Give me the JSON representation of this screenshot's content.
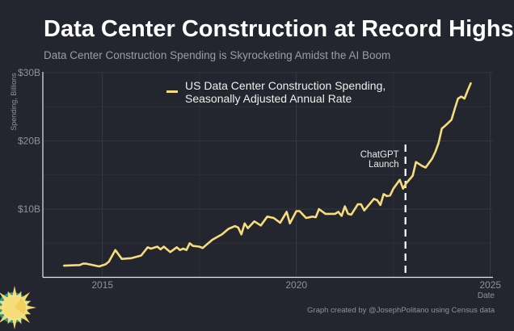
{
  "title": "Data Center Construction at Record Highs",
  "subtitle": "Data Center Construction Spending is Skyrocketing Amidst the AI Boom",
  "credit": "Graph created by @JosephPolitano using Census data",
  "colors": {
    "background": "#23262e",
    "line": "#f7dc7a",
    "grid": "#3a3d45",
    "axis": "#e6e6e6",
    "annotation": "#ffffff"
  },
  "logo": "sun-logo",
  "chart_data": {
    "type": "line",
    "title": "Data Center Construction at Record Highs",
    "subtitle": "Data Center Construction Spending is Skyrocketing Amidst the AI Boom",
    "xlabel": "Date",
    "ylabel": "Spending, Billions",
    "xlim": [
      "2013-07",
      "2025-01"
    ],
    "ylim": [
      0,
      30
    ],
    "grid": true,
    "legend_placement": "top-center",
    "x_ticks": [
      "2015",
      "2020",
      "2025"
    ],
    "y_ticks": [
      {
        "value": 10,
        "label": "$10B"
      },
      {
        "value": 20,
        "label": "$20B"
      },
      {
        "value": 30,
        "label": "$30B"
      }
    ],
    "series": [
      {
        "name": "US Data Center Construction Spending, Seasonally Adjusted Annual Rate",
        "legend_lines": [
          "US Data Center Construction Spending,",
          "Seasonally Adjusted Annual Rate"
        ],
        "points": [
          [
            "2014-01",
            1.7
          ],
          [
            "2014-06",
            1.8
          ],
          [
            "2014-07",
            2.0
          ],
          [
            "2014-08",
            2.0
          ],
          [
            "2014-12",
            1.6
          ],
          [
            "2015-02",
            1.9
          ],
          [
            "2015-03",
            2.3
          ],
          [
            "2015-05",
            4.0
          ],
          [
            "2015-07",
            2.7
          ],
          [
            "2015-10",
            2.8
          ],
          [
            "2016-01",
            3.2
          ],
          [
            "2016-03",
            4.4
          ],
          [
            "2016-04",
            4.2
          ],
          [
            "2016-06",
            4.5
          ],
          [
            "2016-07",
            4.1
          ],
          [
            "2016-08",
            4.5
          ],
          [
            "2016-10",
            3.7
          ],
          [
            "2016-12",
            4.4
          ],
          [
            "2017-01",
            4.0
          ],
          [
            "2017-02",
            4.2
          ],
          [
            "2017-03",
            4.0
          ],
          [
            "2017-04",
            5.0
          ],
          [
            "2017-05",
            4.6
          ],
          [
            "2017-07",
            4.5
          ],
          [
            "2017-08",
            4.3
          ],
          [
            "2017-11",
            5.5
          ],
          [
            "2018-02",
            6.3
          ],
          [
            "2018-04",
            7.1
          ],
          [
            "2018-06",
            7.5
          ],
          [
            "2018-07",
            7.3
          ],
          [
            "2018-08",
            6.3
          ],
          [
            "2018-09",
            7.9
          ],
          [
            "2018-10",
            7.2
          ],
          [
            "2018-12",
            8.2
          ],
          [
            "2019-02",
            7.6
          ],
          [
            "2019-04",
            8.9
          ],
          [
            "2019-06",
            8.7
          ],
          [
            "2019-08",
            8.0
          ],
          [
            "2019-10",
            9.6
          ],
          [
            "2019-11",
            7.9
          ],
          [
            "2020-01",
            9.7
          ],
          [
            "2020-02",
            9.7
          ],
          [
            "2020-04",
            8.7
          ],
          [
            "2020-06",
            8.9
          ],
          [
            "2020-07",
            8.8
          ],
          [
            "2020-08",
            10.0
          ],
          [
            "2020-10",
            9.3
          ],
          [
            "2021-01",
            9.3
          ],
          [
            "2021-02",
            9.6
          ],
          [
            "2021-03",
            9.0
          ],
          [
            "2021-04",
            10.4
          ],
          [
            "2021-05",
            9.3
          ],
          [
            "2021-06",
            9.2
          ],
          [
            "2021-08",
            10.7
          ],
          [
            "2021-09",
            10.7
          ],
          [
            "2021-10",
            9.8
          ],
          [
            "2022-01",
            11.5
          ],
          [
            "2022-02",
            11.3
          ],
          [
            "2022-03",
            10.6
          ],
          [
            "2022-04",
            12.2
          ],
          [
            "2022-05",
            11.9
          ],
          [
            "2022-06",
            12.0
          ],
          [
            "2022-07",
            13.0
          ],
          [
            "2022-09",
            14.3
          ],
          [
            "2022-10",
            13.0
          ],
          [
            "2022-11",
            13.8
          ],
          [
            "2023-01",
            14.9
          ],
          [
            "2023-02",
            16.9
          ],
          [
            "2023-04",
            16.3
          ],
          [
            "2023-05",
            16.1
          ],
          [
            "2023-07",
            17.4
          ],
          [
            "2023-08",
            18.4
          ],
          [
            "2023-09",
            19.7
          ],
          [
            "2023-10",
            21.8
          ],
          [
            "2023-11",
            22.2
          ],
          [
            "2024-01",
            23.1
          ],
          [
            "2024-02",
            24.7
          ],
          [
            "2024-03",
            26.2
          ],
          [
            "2024-04",
            26.5
          ],
          [
            "2024-05",
            26.2
          ],
          [
            "2024-06",
            27.4
          ],
          [
            "2024-07",
            28.5
          ]
        ]
      }
    ],
    "annotations": [
      {
        "type": "vline",
        "x": "2022-11",
        "style": "dashed",
        "lines": [
          "ChatGPT",
          "Launch"
        ]
      }
    ]
  }
}
